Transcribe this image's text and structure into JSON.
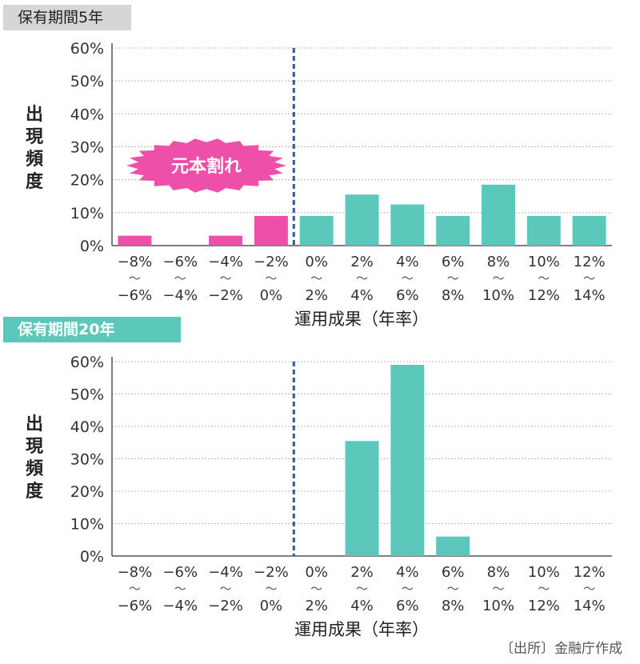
{
  "chart_data": [
    {
      "type": "bar",
      "panel_label": "保有期間5年",
      "ylabel_chars": [
        "出",
        "現",
        "頻",
        "度"
      ],
      "xlabel": "運用成果（年率）",
      "yticks": [
        "0%",
        "10%",
        "20%",
        "30%",
        "40%",
        "50%",
        "60%"
      ],
      "ylim": [
        0,
        60
      ],
      "categories": [
        {
          "top": "−8%",
          "sep": "〜",
          "bottom": "−6%"
        },
        {
          "top": "−6%",
          "sep": "〜",
          "bottom": "−4%"
        },
        {
          "top": "−4%",
          "sep": "〜",
          "bottom": "−2%"
        },
        {
          "top": "−2%",
          "sep": "〜",
          "bottom": "0%"
        },
        {
          "top": "0%",
          "sep": "〜",
          "bottom": "2%"
        },
        {
          "top": "2%",
          "sep": "〜",
          "bottom": "4%"
        },
        {
          "top": "4%",
          "sep": "〜",
          "bottom": "6%"
        },
        {
          "top": "6%",
          "sep": "〜",
          "bottom": "8%"
        },
        {
          "top": "8%",
          "sep": "〜",
          "bottom": "10%"
        },
        {
          "top": "10%",
          "sep": "〜",
          "bottom": "12%"
        },
        {
          "top": "12%",
          "sep": "〜",
          "bottom": "14%"
        }
      ],
      "values": [
        3,
        0,
        3,
        9,
        9,
        15.5,
        12.5,
        9,
        18.5,
        9,
        9
      ],
      "colors": {
        "loss": "#ee4fa8",
        "gain": "#5cc8bb",
        "divider": "#2f5c96"
      },
      "divider_category_index": 4,
      "annotation": "元本割れ"
    },
    {
      "type": "bar",
      "panel_label": "保有期間20年",
      "ylabel_chars": [
        "出",
        "現",
        "頻",
        "度"
      ],
      "xlabel": "運用成果（年率）",
      "yticks": [
        "0%",
        "10%",
        "20%",
        "30%",
        "40%",
        "50%",
        "60%"
      ],
      "ylim": [
        0,
        60
      ],
      "categories": [
        {
          "top": "−8%",
          "sep": "〜",
          "bottom": "−6%"
        },
        {
          "top": "−6%",
          "sep": "〜",
          "bottom": "−4%"
        },
        {
          "top": "−4%",
          "sep": "〜",
          "bottom": "−2%"
        },
        {
          "top": "−2%",
          "sep": "〜",
          "bottom": "0%"
        },
        {
          "top": "0%",
          "sep": "〜",
          "bottom": "2%"
        },
        {
          "top": "2%",
          "sep": "〜",
          "bottom": "4%"
        },
        {
          "top": "4%",
          "sep": "〜",
          "bottom": "6%"
        },
        {
          "top": "6%",
          "sep": "〜",
          "bottom": "8%"
        },
        {
          "top": "8%",
          "sep": "〜",
          "bottom": "10%"
        },
        {
          "top": "10%",
          "sep": "〜",
          "bottom": "12%"
        },
        {
          "top": "12%",
          "sep": "〜",
          "bottom": "14%"
        }
      ],
      "values": [
        0,
        0,
        0,
        0,
        0,
        35.5,
        59,
        6,
        0,
        0,
        0
      ],
      "colors": {
        "loss": "#ee4fa8",
        "gain": "#5cc8bb",
        "divider": "#2f5c96"
      },
      "divider_category_index": 4
    }
  ],
  "source": "〔出所〕金融庁作成"
}
